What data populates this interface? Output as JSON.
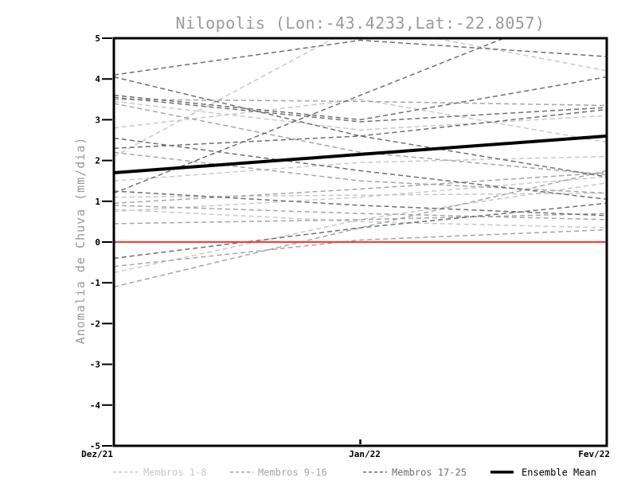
{
  "chart_data": {
    "type": "line",
    "title": "Nilopolis (Lon:-43.4233,Lat:-22.8057)",
    "ylabel": "Anomalia de Chuva (mm/dia)",
    "x_categories": [
      "Dez/21",
      "Jan/22",
      "Fev/22"
    ],
    "ylim": [
      -5,
      5
    ],
    "y_ticks": [
      5,
      4,
      3,
      2,
      1,
      0,
      -1,
      -2,
      -3,
      -4,
      -5
    ],
    "grid": false,
    "legend_position": "bottom",
    "zero_line": {
      "value": 0,
      "color": "#f54040"
    },
    "series_groups": [
      {
        "name": "Membros 1-8",
        "color": "#c9c9c9",
        "style": "dashed",
        "members": [
          [
            2.1,
            5.35,
            4.2
          ],
          [
            2.8,
            3.5,
            2.45
          ],
          [
            3.45,
            2.75,
            3.1
          ],
          [
            1.5,
            1.95,
            2.1
          ],
          [
            1.1,
            1.15,
            1.2
          ],
          [
            0.8,
            0.5,
            0.35
          ],
          [
            0.75,
            1.1,
            1.6
          ],
          [
            -0.75,
            0.55,
            1.45
          ]
        ]
      },
      {
        "name": "Membros 9-16",
        "color": "#a6a6a6",
        "style": "dashed",
        "members": [
          [
            3.5,
            3.45,
            3.35
          ],
          [
            3.4,
            2.2,
            1.65
          ],
          [
            2.2,
            1.5,
            1.2
          ],
          [
            0.95,
            1.3,
            1.7
          ],
          [
            0.9,
            0.7,
            0.55
          ],
          [
            0.45,
            0.55,
            0.7
          ],
          [
            -0.6,
            0.05,
            0.3
          ],
          [
            -1.1,
            0.35,
            1.75
          ]
        ]
      },
      {
        "name": "Membros 17-25",
        "color": "#6f6f6f",
        "style": "dashed",
        "members": [
          [
            4.1,
            4.95,
            4.55
          ],
          [
            4.05,
            2.6,
            1.6
          ],
          [
            3.6,
            3.0,
            4.05
          ],
          [
            3.55,
            2.95,
            3.3
          ],
          [
            2.55,
            1.75,
            1.05
          ],
          [
            2.3,
            2.6,
            3.25
          ],
          [
            1.25,
            0.9,
            0.65
          ],
          [
            -0.4,
            0.35,
            0.95
          ],
          [
            1.2,
            3.6,
            6.0
          ]
        ]
      }
    ],
    "ensemble_mean": {
      "name": "Ensemble Mean",
      "color": "#000000",
      "values": [
        1.7,
        2.15,
        2.6
      ]
    },
    "colors": {
      "frame": "#000000",
      "tick_label": "#000000",
      "title": "#9b9b9b",
      "axis_label": "#9b9b9b"
    }
  }
}
